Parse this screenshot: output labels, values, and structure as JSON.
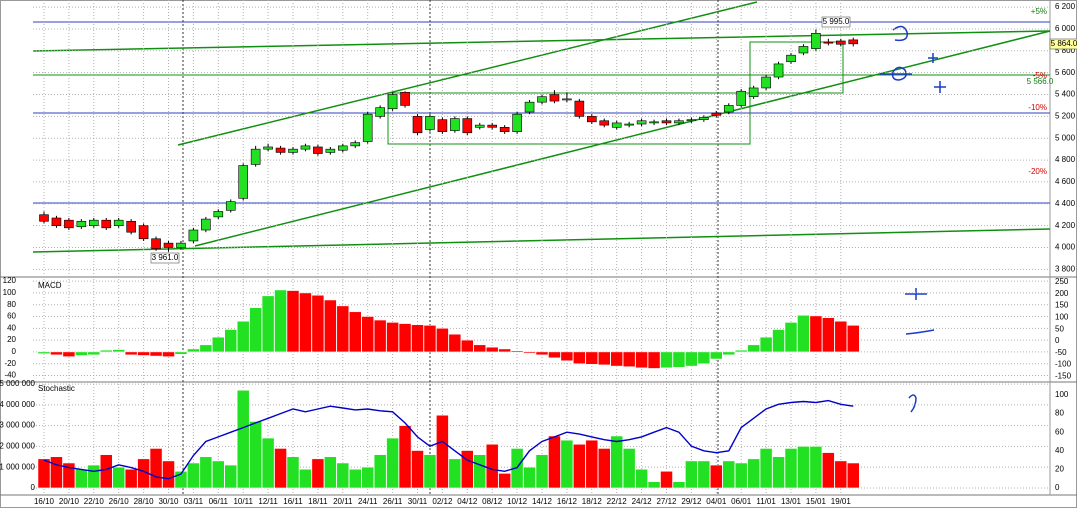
{
  "chart_data": [
    {
      "type": "candlestick",
      "up_color": "#22e022",
      "down_color": "#ff0000",
      "open": [
        4300,
        4270,
        4250,
        4190,
        4200,
        4250,
        4200,
        4240,
        4200,
        4080,
        4040,
        4000,
        4060,
        4160,
        4280,
        4340,
        4450,
        4760,
        4900,
        4910,
        4870,
        4900,
        4920,
        4870,
        4890,
        4930,
        4970,
        5200,
        5270,
        5420,
        5200,
        5080,
        5170,
        5070,
        5180,
        5100,
        5120,
        5100,
        5060,
        5240,
        5330,
        5400,
        5350,
        5340,
        5200,
        5160,
        5100,
        5120,
        5130,
        5140,
        5160,
        5140,
        5160,
        5170,
        5230,
        5240,
        5300,
        5380,
        5460,
        5560,
        5700,
        5780,
        5820,
        5880,
        5890,
        5900
      ],
      "high": [
        4330,
        4290,
        4270,
        4260,
        4270,
        4270,
        4270,
        4260,
        4220,
        4100,
        4060,
        4060,
        4180,
        4280,
        4350,
        4440,
        4770,
        4930,
        4950,
        4930,
        4920,
        4950,
        4940,
        4920,
        4950,
        4980,
        5240,
        5300,
        5420,
        5430,
        5220,
        5220,
        5190,
        5200,
        5200,
        5140,
        5140,
        5120,
        5240,
        5350,
        5400,
        5440,
        5420,
        5360,
        5220,
        5180,
        5160,
        5150,
        5180,
        5170,
        5180,
        5180,
        5190,
        5210,
        5250,
        5320,
        5450,
        5480,
        5580,
        5700,
        5780,
        5860,
        5995,
        5910,
        5910,
        5920
      ],
      "low": [
        4220,
        4180,
        4160,
        4170,
        4180,
        4160,
        4180,
        4120,
        4060,
        3970,
        3961,
        3980,
        4040,
        4140,
        4260,
        4320,
        4430,
        4740,
        4880,
        4850,
        4850,
        4880,
        4840,
        4850,
        4870,
        4910,
        4950,
        5180,
        5250,
        5280,
        5030,
        5060,
        5040,
        5050,
        5030,
        5080,
        5080,
        5040,
        5040,
        5220,
        5310,
        5320,
        5330,
        5180,
        5130,
        5100,
        5080,
        5100,
        5110,
        5120,
        5120,
        5120,
        5140,
        5150,
        5190,
        5220,
        5280,
        5360,
        5440,
        5540,
        5680,
        5760,
        5800,
        5850,
        5840,
        5840
      ],
      "close": [
        4240,
        4200,
        4180,
        4240,
        4250,
        4180,
        4250,
        4140,
        4080,
        3990,
        4000,
        4040,
        4160,
        4260,
        4330,
        4420,
        4750,
        4900,
        4920,
        4870,
        4900,
        4930,
        4860,
        4900,
        4930,
        4960,
        5220,
        5280,
        5400,
        5300,
        5050,
        5200,
        5060,
        5180,
        5050,
        5120,
        5100,
        5060,
        5220,
        5330,
        5380,
        5340,
        5360,
        5200,
        5150,
        5120,
        5140,
        5130,
        5160,
        5150,
        5140,
        5160,
        5170,
        5190,
        5210,
        5300,
        5430,
        5460,
        5560,
        5680,
        5760,
        5840,
        5960,
        5870,
        5860,
        5864
      ],
      "ylim": [
        3730,
        6265
      ],
      "yticks": [
        {
          "value": 3800,
          "label": "3 800"
        },
        {
          "value": 4000,
          "label": "4 000"
        },
        {
          "value": 4200,
          "label": "4 200"
        },
        {
          "value": 4400,
          "label": "4 400"
        },
        {
          "value": 4600,
          "label": "4 600"
        },
        {
          "value": 4800,
          "label": "4 800"
        },
        {
          "value": 5000,
          "label": "5 000"
        },
        {
          "value": 5200,
          "label": "5 200"
        },
        {
          "value": 5400,
          "label": "5 400"
        },
        {
          "value": 5600,
          "label": "5 600"
        },
        {
          "value": 5800,
          "label": "5 800"
        },
        {
          "value": 6000,
          "label": "6 000"
        },
        {
          "value": 6200,
          "label": "6 200"
        }
      ],
      "grid": true,
      "annotations": [
        "5 995.0",
        "5 864.0",
        "5 566.0",
        "3 961.0"
      ],
      "level_labels": [
        "+5%",
        "-5%",
        "-10%",
        "-20%"
      ]
    },
    {
      "type": "bar",
      "title": "MACD",
      "up_color": "#22e022",
      "down_color": "#ff0000",
      "values": [
        -3,
        -5,
        -8,
        -6,
        -5,
        3,
        4,
        -5,
        -6,
        -7,
        -8,
        -4,
        5,
        12,
        25,
        38,
        52,
        75,
        95,
        105,
        104,
        100,
        96,
        88,
        78,
        68,
        60,
        54,
        50,
        48,
        46,
        45,
        40,
        30,
        20,
        12,
        8,
        5,
        2,
        -2,
        -5,
        -10,
        -15,
        -20,
        -21,
        -22,
        -24,
        -25,
        -27,
        -28,
        -27,
        -26,
        -24,
        -20,
        -12,
        -5,
        3,
        12,
        25,
        38,
        50,
        62,
        61,
        58,
        52,
        45
      ],
      "ylim": [
        -51,
        127
      ],
      "yticks": [
        -40,
        -20,
        0,
        20,
        40,
        60,
        80,
        100,
        120
      ],
      "y2lim": [
        -174,
        271
      ],
      "y2ticks": [
        -150,
        -100,
        -50,
        0,
        50,
        100,
        150,
        200,
        250
      ],
      "grid": true
    },
    {
      "type": "bar",
      "title": "Stochastic",
      "up_color": "#22e022",
      "down_color": "#ff0000",
      "categories": [
        "16/10",
        null,
        "20/10",
        null,
        "22/10",
        null,
        "26/10",
        null,
        "28/10",
        null,
        "30/10",
        null,
        "03/11",
        null,
        "06/11",
        null,
        "10/11",
        null,
        "12/11",
        null,
        "16/11",
        null,
        "18/11",
        null,
        "20/11",
        null,
        "24/11",
        null,
        "26/11",
        null,
        "30/11",
        null,
        "02/12",
        null,
        "04/12",
        null,
        "08/12",
        null,
        "10/12",
        null,
        "14/12",
        null,
        "16/12",
        null,
        "18/12",
        null,
        "22/12",
        null,
        "24/12",
        null,
        "27/12",
        null,
        "29/12",
        null,
        "04/01",
        null,
        "06/01",
        null,
        "11/01",
        null,
        "13/01",
        null,
        "15/01",
        null,
        "19/01",
        null
      ],
      "values": [
        1400000,
        1500000,
        1200000,
        900000,
        1100000,
        1600000,
        1000000,
        900000,
        1400000,
        1900000,
        1300000,
        800000,
        1200000,
        1500000,
        1300000,
        1100000,
        4700000,
        3200000,
        2400000,
        1900000,
        1500000,
        900000,
        1400000,
        1500000,
        1200000,
        900000,
        1000000,
        1600000,
        2400000,
        3000000,
        1800000,
        1600000,
        3500000,
        1400000,
        1800000,
        1600000,
        2100000,
        700000,
        1900000,
        1000000,
        1600000,
        2500000,
        2300000,
        2100000,
        2300000,
        1900000,
        2500000,
        1900000,
        900000,
        300000,
        800000,
        300000,
        1300000,
        1300000,
        1100000,
        1300000,
        1200000,
        1400000,
        1900000,
        1500000,
        1900000,
        2000000,
        2000000,
        1700000,
        1300000,
        1200000
      ],
      "ylim": [
        -340000,
        5100000
      ],
      "yticks": [
        0,
        {
          "value": 1000000,
          "label": "1 000 000"
        },
        {
          "value": 2000000,
          "label": "2 000 000"
        },
        {
          "value": 3000000,
          "label": "3 000 000"
        },
        {
          "value": 4000000,
          "label": "4 000 000"
        },
        {
          "value": 5000000,
          "label": "5 000 000"
        }
      ],
      "y2lim": [
        -7.5,
        114
      ],
      "y2ticks": [
        0,
        20,
        40,
        60,
        80,
        100
      ],
      "series": [
        {
          "color": "#0000c8",
          "axis": "y2",
          "values": [
            30,
            25,
            22,
            20,
            18,
            20,
            25,
            22,
            18,
            12,
            10,
            15,
            35,
            50,
            55,
            60,
            65,
            70,
            75,
            80,
            85,
            82,
            85,
            88,
            86,
            84,
            85,
            83,
            82,
            70,
            55,
            45,
            50,
            40,
            30,
            25,
            20,
            18,
            22,
            40,
            50,
            55,
            60,
            58,
            55,
            52,
            50,
            52,
            55,
            60,
            65,
            60,
            45,
            40,
            38,
            40,
            65,
            75,
            85,
            90,
            92,
            93,
            92,
            94,
            90,
            88
          ]
        }
      ],
      "grid": true
    }
  ]
}
